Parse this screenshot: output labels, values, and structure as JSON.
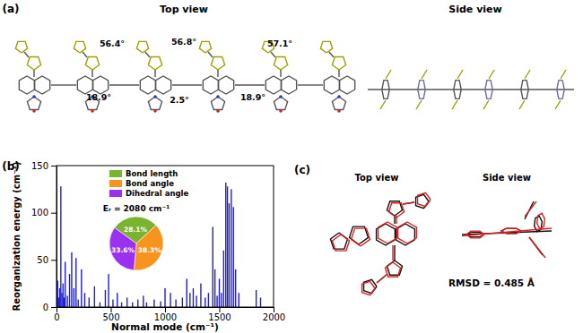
{
  "panel_labels": [
    "(a)",
    "(b)",
    "(c)"
  ],
  "panel_a": {
    "views": [
      "Top view",
      "Side view"
    ],
    "angles": [
      "56.4°",
      "56.8°",
      "57.1°",
      "18.9°",
      "2.5°",
      "18.9°"
    ]
  },
  "panel_c": {
    "views": [
      "Top view",
      "Side view"
    ],
    "rmsd": "RMSD = 0.485 Å"
  },
  "chart_data": [
    {
      "type": "bar",
      "x_label": "Normal mode (cm⁻¹)",
      "y_label": "Reorganization energy (cm⁻¹)",
      "x": [
        10,
        20,
        30,
        40,
        50,
        60,
        70,
        80,
        100,
        120,
        140,
        160,
        180,
        200,
        230,
        260,
        300,
        350,
        400,
        450,
        480,
        520,
        560,
        600,
        650,
        700,
        750,
        800,
        830,
        900,
        960,
        1000,
        1050,
        1100,
        1160,
        1200,
        1230,
        1260,
        1290,
        1330,
        1370,
        1400,
        1440,
        1460,
        1480,
        1500,
        1520,
        1540,
        1560,
        1575,
        1590,
        1610,
        1630,
        1650,
        1680,
        1840,
        1880
      ],
      "values": [
        28,
        10,
        20,
        128,
        15,
        25,
        10,
        48,
        12,
        35,
        58,
        20,
        52,
        8,
        40,
        15,
        10,
        22,
        5,
        18,
        35,
        8,
        15,
        5,
        10,
        5,
        8,
        12,
        5,
        8,
        6,
        20,
        15,
        8,
        10,
        30,
        15,
        20,
        12,
        25,
        10,
        15,
        85,
        40,
        12,
        30,
        15,
        60,
        132,
        128,
        110,
        125,
        106,
        40,
        15,
        18,
        10
      ],
      "color": "#1f1fd0",
      "xlim": [
        0,
        2000
      ],
      "xticks": [
        0,
        500,
        1000,
        1500,
        2000
      ],
      "ylim": [
        0,
        150
      ],
      "yticks": [
        0,
        50,
        100,
        150
      ]
    },
    {
      "type": "pie",
      "title": "Eᵣ = 2080 cm⁻¹",
      "categories": [
        "Bond length",
        "Bond angle",
        "Dihedral angle"
      ],
      "values": [
        28.1,
        38.3,
        33.6
      ],
      "value_labels": [
        "28.1%",
        "38.3%",
        "33.6%"
      ],
      "colors": [
        "#7ab32e",
        "#f7941d",
        "#9b30f0"
      ],
      "data_labels": true,
      "legend": "top"
    }
  ]
}
